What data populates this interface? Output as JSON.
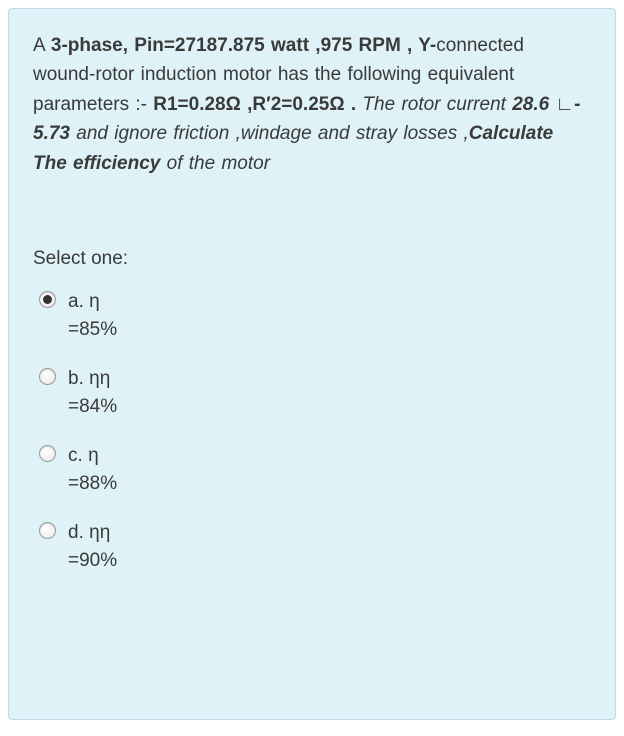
{
  "colors": {
    "box_bg": "#def2f8",
    "box_border": "#bfdde8",
    "text": "#3a3a3a",
    "radio_border": "#9a9a9a",
    "radio_fill": "#333333",
    "page_bg": "#ffffff"
  },
  "typography": {
    "family": "Arial, Helvetica, sans-serif",
    "body_size_pt": 14,
    "line_height": 1.55
  },
  "question": {
    "segments": [
      {
        "text": "A ",
        "style": "plain"
      },
      {
        "text": "3-phase, Pin=27187.875 watt ,975 RPM , Y-",
        "style": "bold"
      },
      {
        "text": "connected wound-rotor induction motor has the following equivalent parameters :- ",
        "style": "plain"
      },
      {
        "text": "R1=0.28Ω ,R′2=0.25Ω .",
        "style": "bold"
      },
      {
        "text": "   ",
        "style": "plain"
      },
      {
        "text": "The rotor current",
        "style": "italic"
      },
      {
        "text": "   ",
        "style": "plain"
      },
      {
        "text": "28.6 ∟- 5.73",
        "style": "bolditalic"
      },
      {
        "text": " and ignore friction ,windage and stray losses ,",
        "style": "italic"
      },
      {
        "text": "Calculate The efficiency",
        "style": "bolditalic"
      },
      {
        "text": "  of the motor",
        "style": "italic"
      }
    ]
  },
  "prompt": "Select one:",
  "options": [
    {
      "letter": "a.",
      "symbol": "η",
      "value": "=85%",
      "selected": true
    },
    {
      "letter": "b.",
      "symbol": "ηη",
      "value": "=84%",
      "selected": false
    },
    {
      "letter": "c.",
      "symbol": "η",
      "value": "=88%",
      "selected": false
    },
    {
      "letter": "d.",
      "symbol": "ηη",
      "value": "=90%",
      "selected": false
    }
  ]
}
